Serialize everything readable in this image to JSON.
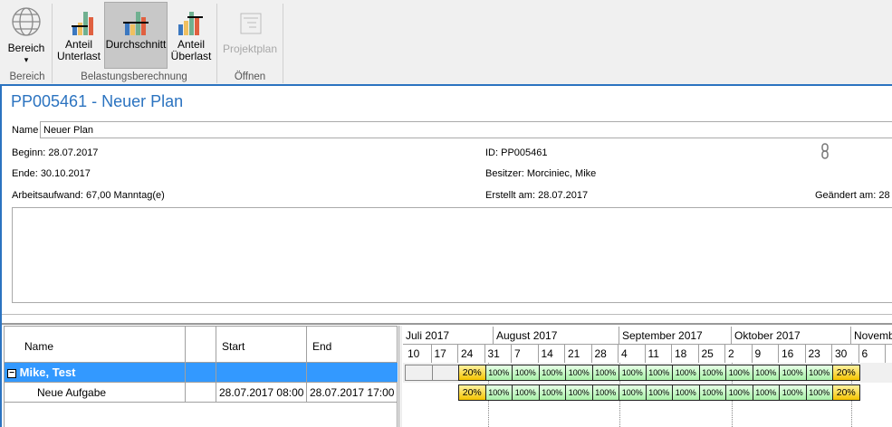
{
  "ribbon": {
    "buttons": [
      {
        "label": "Bereich",
        "label2": "▾",
        "icon": "globe-icon"
      },
      {
        "label": "Anteil",
        "label2": "Unterlast",
        "icon": "bar-chart-underload-icon"
      },
      {
        "label": "Durchschnitt",
        "label2": "",
        "icon": "bar-chart-average-icon",
        "active": true
      },
      {
        "label": "Anteil",
        "label2": "Überlast",
        "icon": "bar-chart-overload-icon"
      },
      {
        "label": "Projektplan",
        "label2": "",
        "icon": "project-plan-icon",
        "disabled": true
      }
    ],
    "groups": [
      "Bereich",
      "Belastungsberechnung",
      "Öffnen"
    ]
  },
  "plan": {
    "title": "PP005461 - Neuer Plan",
    "name_label": "Name",
    "name_value": "Neuer Plan",
    "beginn_label": "Beginn:",
    "beginn": "28.07.2017",
    "ende_label": "Ende:",
    "ende": "30.10.2017",
    "aufwand_label": "Arbeitsaufwand:",
    "aufwand": "67,00 Manntag(e)",
    "id_label": "ID:",
    "id": "PP005461",
    "besitzer_label": "Besitzer:",
    "besitzer": "Morciniec, Mike",
    "erstellt_label": "Erstellt am:",
    "erstellt": "28.07.2017",
    "geaendert_label": "Geändert am:",
    "geaendert": "28",
    "link_icon": "chain-link-icon",
    "description": ""
  },
  "grid": {
    "headers": [
      "Name",
      "",
      "Start",
      "End"
    ],
    "rows": [
      {
        "name": "Mike, Test",
        "start": "",
        "end": "",
        "group": true
      },
      {
        "name": "Neue Aufgabe",
        "start": "28.07.2017 08:00",
        "end": "28.07.2017 17:00"
      }
    ]
  },
  "gantt": {
    "months": [
      "Juli 2017",
      "August 2017",
      "September 2017",
      "Oktober 2017",
      "Novemb"
    ],
    "weeks": [
      "10",
      "17",
      "24",
      "31",
      "7",
      "14",
      "21",
      "28",
      "4",
      "11",
      "18",
      "25",
      "2",
      "9",
      "16",
      "23",
      "30",
      "6"
    ],
    "rows": [
      {
        "cells": [
          "",
          "",
          "20%",
          "100%",
          "100%",
          "100%",
          "100%",
          "100%",
          "100%",
          "100%",
          "100%",
          "100%",
          "100%",
          "100%",
          "100%",
          "100%",
          "20%"
        ]
      },
      {
        "cells": [
          null,
          null,
          "20%",
          "100%",
          "100%",
          "100%",
          "100%",
          "100%",
          "100%",
          "100%",
          "100%",
          "100%",
          "100%",
          "100%",
          "100%",
          "100%",
          "20%"
        ]
      }
    ],
    "colors": {
      "full": "#a8f0a8",
      "partial": "#f4c400",
      "selection": "#3399ff"
    }
  }
}
